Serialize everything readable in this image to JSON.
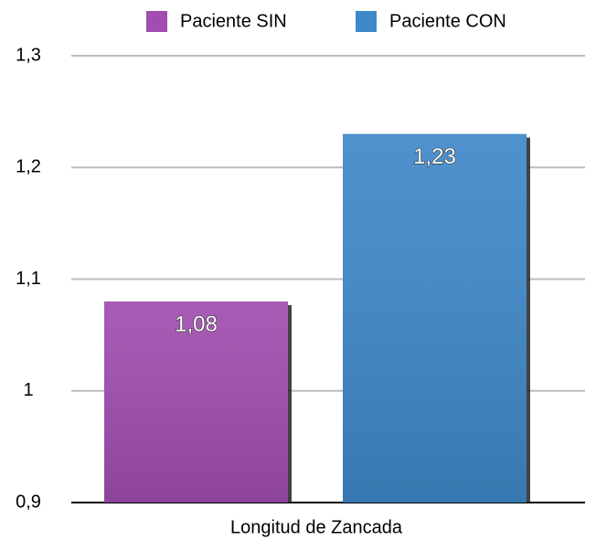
{
  "chart_data": {
    "type": "bar",
    "categories": [
      "Longitud de Zancada"
    ],
    "series": [
      {
        "name": "Paciente SIN",
        "color": "#a04daf",
        "values": [
          1.08
        ],
        "value_labels": [
          "1,08"
        ]
      },
      {
        "name": "Paciente CON",
        "color": "#3f88c9",
        "values": [
          1.23
        ],
        "value_labels": [
          "1,23"
        ]
      }
    ],
    "ylim": [
      0.9,
      1.3
    ],
    "yticks": [
      {
        "value": 0.9,
        "label": "0,9"
      },
      1,
      {
        "value": 1.1,
        "label": "1,1"
      },
      {
        "value": 1.2,
        "label": "1,2"
      },
      {
        "value": 1.3,
        "label": "1,3"
      }
    ],
    "grid": true,
    "legend": "top"
  }
}
